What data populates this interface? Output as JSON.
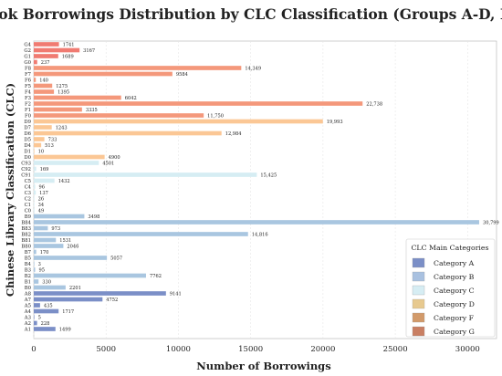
{
  "chart_data": {
    "type": "bar",
    "orientation": "horizontal",
    "title": "Book Borrowings Distribution by CLC Classification (Groups A-D, F-G)",
    "xlabel": "Number of Borrowings",
    "ylabel": "Chinese Library Classification (CLC)",
    "xlim": [
      0,
      32000
    ],
    "xticks": [
      "0",
      "5000",
      "10000",
      "15000",
      "20000",
      "25000",
      "30000"
    ],
    "grid": true,
    "legend_placement": "bottom-right",
    "legend": {
      "title": "CLC Main Categories",
      "entries": [
        {
          "label": "Category A",
          "color": "#7b8fc7"
        },
        {
          "label": "Category B",
          "color": "#a9c1e0"
        },
        {
          "label": "Category C",
          "color": "#d6edf3"
        },
        {
          "label": "Category D",
          "color": "#e7c98f"
        },
        {
          "label": "Category F",
          "color": "#d29a6a"
        },
        {
          "label": "Category G",
          "color": "#c97f63"
        }
      ]
    },
    "bars": [
      {
        "label": "G4",
        "value": 1741,
        "text": "1741",
        "color": "#f07b72"
      },
      {
        "label": "G2",
        "value": 3167,
        "text": "3167",
        "color": "#f07b72"
      },
      {
        "label": "G1",
        "value": 1689,
        "text": "1689",
        "color": "#f07b72"
      },
      {
        "label": "G0",
        "value": 237,
        "text": "237",
        "color": "#f07b72"
      },
      {
        "label": "F8",
        "value": 14349,
        "text": "14,349",
        "color": "#f4987b"
      },
      {
        "label": "F7",
        "value": 9584,
        "text": "9584",
        "color": "#f4987b"
      },
      {
        "label": "F6",
        "value": 140,
        "text": "140",
        "color": "#f4987b"
      },
      {
        "label": "F5",
        "value": 1275,
        "text": "1275",
        "color": "#f4987b"
      },
      {
        "label": "F4",
        "value": 1395,
        "text": "1395",
        "color": "#f4987b"
      },
      {
        "label": "F3",
        "value": 6042,
        "text": "6042",
        "color": "#f4987b"
      },
      {
        "label": "F2",
        "value": 22738,
        "text": "22,738",
        "color": "#f4987b"
      },
      {
        "label": "F1",
        "value": 3335,
        "text": "3335",
        "color": "#f4987b"
      },
      {
        "label": "F0",
        "value": 11750,
        "text": "11,750",
        "color": "#f4987b"
      },
      {
        "label": "D9",
        "value": 19993,
        "text": "19,993",
        "color": "#fbc795"
      },
      {
        "label": "D7",
        "value": 1243,
        "text": "1243",
        "color": "#fbc795"
      },
      {
        "label": "D6",
        "value": 12984,
        "text": "12,984",
        "color": "#fbc795"
      },
      {
        "label": "D5",
        "value": 733,
        "text": "733",
        "color": "#fbc795"
      },
      {
        "label": "D4",
        "value": 513,
        "text": "513",
        "color": "#fbc795"
      },
      {
        "label": "D1",
        "value": 10,
        "text": "10",
        "color": "#fbc795"
      },
      {
        "label": "D0",
        "value": 4900,
        "text": "4900",
        "color": "#fbc795"
      },
      {
        "label": "C93",
        "value": 4501,
        "text": "4501",
        "color": "#d6edf3"
      },
      {
        "label": "C92",
        "value": 169,
        "text": "169",
        "color": "#d6edf3"
      },
      {
        "label": "C91",
        "value": 15425,
        "text": "15,425",
        "color": "#d6edf3"
      },
      {
        "label": "C5",
        "value": 1432,
        "text": "1432",
        "color": "#d6edf3"
      },
      {
        "label": "C4",
        "value": 96,
        "text": "96",
        "color": "#d6edf3"
      },
      {
        "label": "C3",
        "value": 137,
        "text": "137",
        "color": "#d6edf3"
      },
      {
        "label": "C2",
        "value": 26,
        "text": "26",
        "color": "#d6edf3"
      },
      {
        "label": "C1",
        "value": 34,
        "text": "34",
        "color": "#d6edf3"
      },
      {
        "label": "C0",
        "value": 49,
        "text": "49",
        "color": "#d6edf3"
      },
      {
        "label": "B9",
        "value": 3498,
        "text": "3498",
        "color": "#a9c6e0"
      },
      {
        "label": "B84",
        "value": 30799,
        "text": "30,799",
        "color": "#a9c6e0"
      },
      {
        "label": "B83",
        "value": 973,
        "text": "973",
        "color": "#a9c6e0"
      },
      {
        "label": "B82",
        "value": 14816,
        "text": "14,816",
        "color": "#a9c6e0"
      },
      {
        "label": "B81",
        "value": 1531,
        "text": "1531",
        "color": "#a9c6e0"
      },
      {
        "label": "B80",
        "value": 2046,
        "text": "2046",
        "color": "#a9c6e0"
      },
      {
        "label": "B7",
        "value": 170,
        "text": "170",
        "color": "#a9c6e0"
      },
      {
        "label": "B5",
        "value": 5057,
        "text": "5057",
        "color": "#a9c6e0"
      },
      {
        "label": "B4",
        "value": 3,
        "text": "3",
        "color": "#a9c6e0"
      },
      {
        "label": "B3",
        "value": 95,
        "text": "95",
        "color": "#a9c6e0"
      },
      {
        "label": "B2",
        "value": 7762,
        "text": "7762",
        "color": "#a9c6e0"
      },
      {
        "label": "B1",
        "value": 330,
        "text": "330",
        "color": "#a9c6e0"
      },
      {
        "label": "B0",
        "value": 2201,
        "text": "2201",
        "color": "#a9c6e0"
      },
      {
        "label": "A8",
        "value": 9141,
        "text": "9141",
        "color": "#7b8fc7"
      },
      {
        "label": "A7",
        "value": 4752,
        "text": "4752",
        "color": "#7b8fc7"
      },
      {
        "label": "A5",
        "value": 435,
        "text": "435",
        "color": "#7b8fc7"
      },
      {
        "label": "A4",
        "value": 1717,
        "text": "1717",
        "color": "#7b8fc7"
      },
      {
        "label": "A3",
        "value": 5,
        "text": "5",
        "color": "#7b8fc7"
      },
      {
        "label": "A2",
        "value": 228,
        "text": "228",
        "color": "#7b8fc7"
      },
      {
        "label": "A1",
        "value": 1499,
        "text": "1499",
        "color": "#7b8fc7"
      }
    ]
  }
}
